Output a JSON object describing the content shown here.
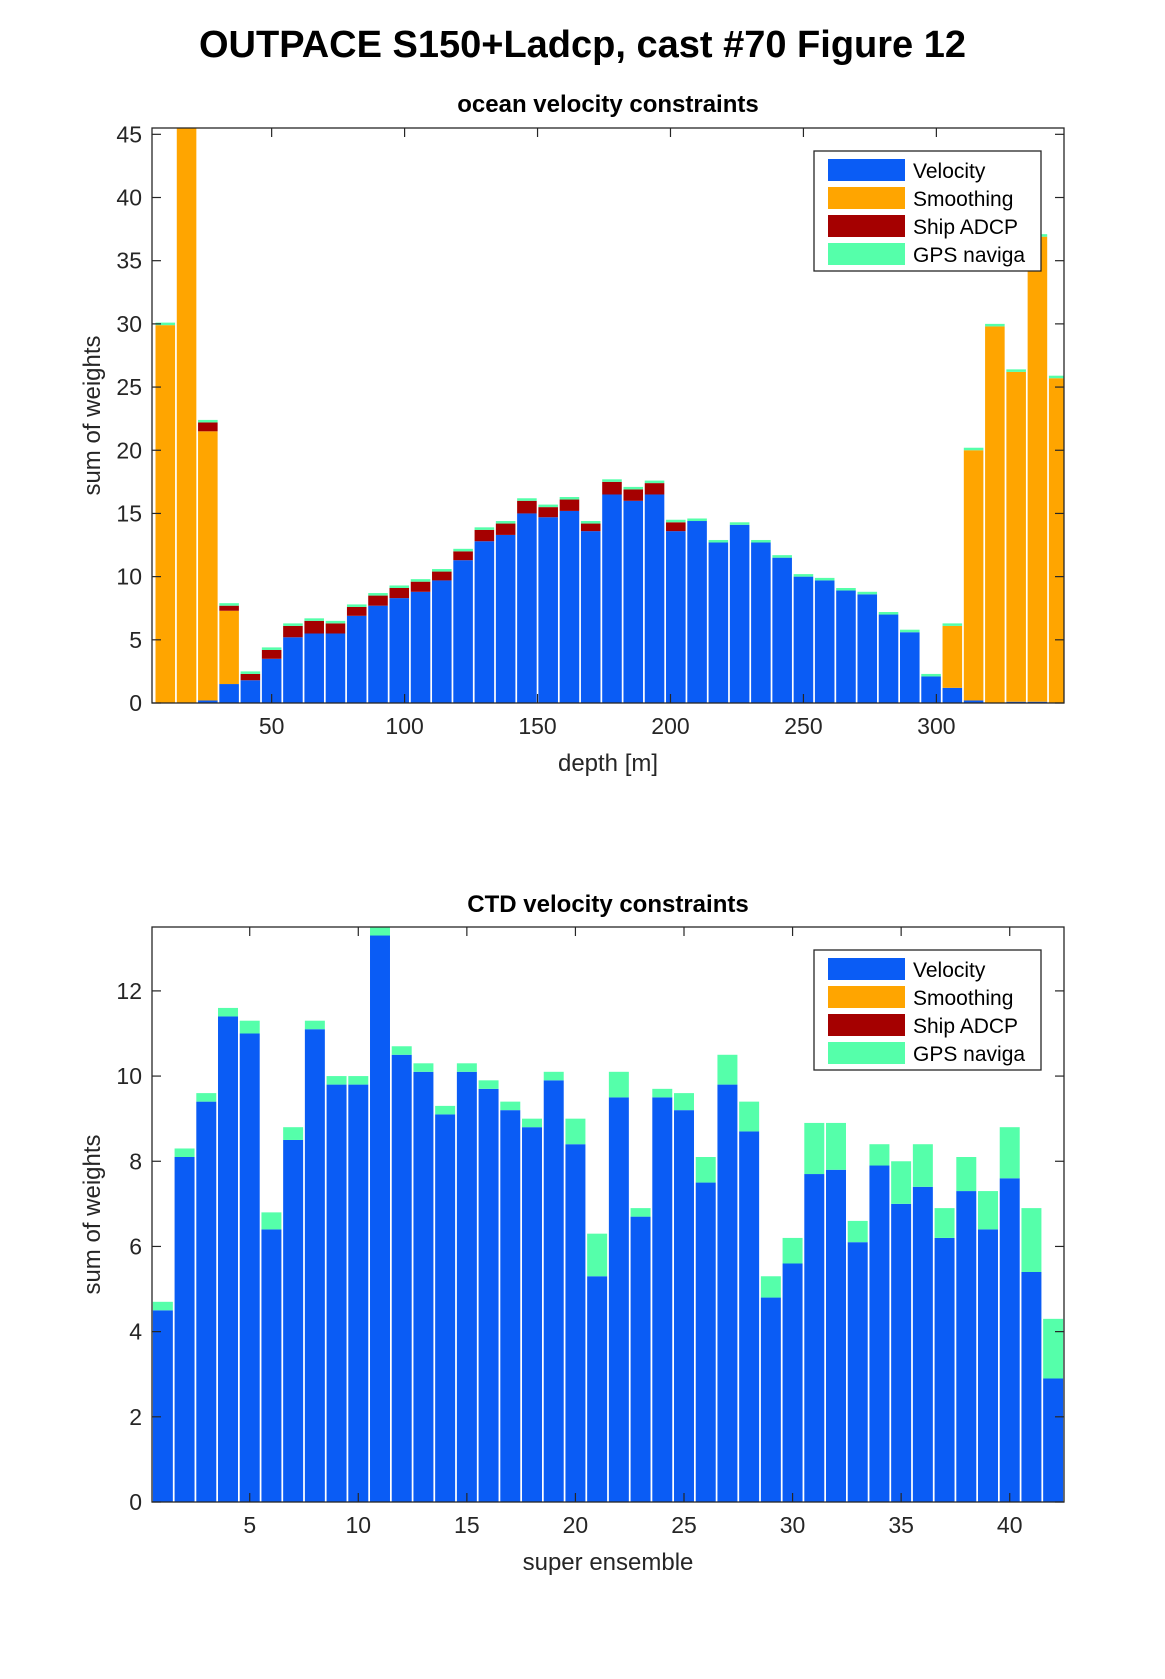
{
  "figure_title": "OUTPACE S150+Ladcp, cast #70  Figure 12",
  "colors": {
    "Velocity": "#0a5cf5",
    "Smoothing": "#ffa500",
    "Ship ADCP": "#a50000",
    "GPS naviga": "#55ffaa"
  },
  "chart_data": [
    {
      "type": "bar",
      "stacked": true,
      "title": "ocean velocity constraints",
      "xlabel": "depth [m]",
      "ylabel": "sum of weights",
      "xlim": [
        5,
        348
      ],
      "ylim": [
        0,
        45.5
      ],
      "xticks": [
        50,
        100,
        150,
        200,
        250,
        300
      ],
      "yticks": [
        0,
        5,
        10,
        15,
        20,
        25,
        30,
        35,
        40,
        45
      ],
      "legend_position": "top-right",
      "x": [
        10,
        18,
        26,
        34,
        42,
        50,
        58,
        66,
        74,
        82,
        90,
        98,
        106,
        114,
        122,
        130,
        138,
        146,
        154,
        162,
        170,
        178,
        186,
        194,
        202,
        210,
        218,
        226,
        234,
        242,
        250,
        258,
        266,
        274,
        282,
        290,
        298,
        306,
        314,
        322,
        330,
        338,
        346
      ],
      "series": [
        {
          "name": "Velocity",
          "values": [
            0,
            0,
            0.2,
            1.5,
            1.8,
            3.5,
            5.2,
            5.5,
            5.5,
            6.9,
            7.7,
            8.3,
            8.8,
            9.7,
            11.3,
            12.8,
            13.3,
            15.0,
            14.7,
            15.2,
            13.6,
            16.5,
            16.0,
            16.5,
            13.6,
            14.4,
            12.7,
            14.1,
            12.7,
            11.5,
            10.0,
            9.7,
            8.9,
            8.6,
            7.0,
            5.6,
            2.1,
            1.2,
            0.2,
            0,
            0.1,
            0.1,
            0
          ]
        },
        {
          "name": "Smoothing",
          "values": [
            29.9,
            45.5,
            21.3,
            5.8,
            0,
            0,
            0,
            0,
            0,
            0,
            0,
            0,
            0,
            0,
            0,
            0,
            0,
            0,
            0,
            0,
            0,
            0,
            0,
            0,
            0,
            0,
            0,
            0,
            0,
            0,
            0,
            0,
            0,
            0,
            0,
            0,
            0,
            4.9,
            19.8,
            29.8,
            26.1,
            36.8,
            25.7
          ]
        },
        {
          "name": "Ship ADCP",
          "values": [
            0,
            0,
            0.7,
            0.4,
            0.5,
            0.7,
            0.9,
            1.0,
            0.8,
            0.7,
            0.8,
            0.8,
            0.8,
            0.7,
            0.7,
            0.9,
            0.9,
            1.0,
            0.8,
            0.9,
            0.6,
            1.0,
            0.9,
            0.9,
            0.7,
            0,
            0,
            0,
            0,
            0,
            0,
            0,
            0,
            0,
            0,
            0,
            0,
            0,
            0,
            0,
            0,
            0,
            0
          ]
        },
        {
          "name": "GPS naviga",
          "values": [
            0.2,
            0.2,
            0.2,
            0.2,
            0.2,
            0.2,
            0.2,
            0.2,
            0.2,
            0.2,
            0.2,
            0.2,
            0.2,
            0.2,
            0.2,
            0.2,
            0.2,
            0.2,
            0.2,
            0.2,
            0.2,
            0.2,
            0.2,
            0.2,
            0.2,
            0.2,
            0.2,
            0.2,
            0.2,
            0.2,
            0.2,
            0.2,
            0.2,
            0.2,
            0.2,
            0.2,
            0.2,
            0.2,
            0.2,
            0.2,
            0.2,
            0.2,
            0.2
          ]
        }
      ]
    },
    {
      "type": "bar",
      "stacked": true,
      "title": "CTD velocity constraints",
      "xlabel": "super ensemble",
      "ylabel": "sum of weights",
      "xlim": [
        0.5,
        42.5
      ],
      "ylim": [
        0,
        13.5
      ],
      "xticks": [
        5,
        10,
        15,
        20,
        25,
        30,
        35,
        40
      ],
      "yticks": [
        0,
        2,
        4,
        6,
        8,
        10,
        12
      ],
      "legend_position": "top-right",
      "x": [
        1,
        2,
        3,
        4,
        5,
        6,
        7,
        8,
        9,
        10,
        11,
        12,
        13,
        14,
        15,
        16,
        17,
        18,
        19,
        20,
        21,
        22,
        23,
        24,
        25,
        26,
        27,
        28,
        29,
        30,
        31,
        32,
        33,
        34,
        35,
        36,
        37,
        38,
        39,
        40,
        41,
        42
      ],
      "series": [
        {
          "name": "Velocity",
          "values": [
            4.5,
            8.1,
            9.4,
            11.4,
            11.0,
            6.4,
            8.5,
            11.1,
            9.8,
            9.8,
            13.3,
            10.5,
            10.1,
            9.1,
            10.1,
            9.7,
            9.2,
            8.8,
            9.9,
            8.4,
            5.3,
            9.5,
            6.7,
            9.5,
            9.2,
            7.5,
            9.8,
            8.7,
            4.8,
            5.6,
            7.7,
            7.8,
            6.1,
            7.9,
            7.0,
            7.4,
            6.2,
            7.3,
            6.4,
            7.6,
            5.4,
            2.9
          ]
        },
        {
          "name": "Smoothing",
          "values": [
            0,
            0,
            0,
            0,
            0,
            0,
            0,
            0,
            0,
            0,
            0,
            0,
            0,
            0,
            0,
            0,
            0,
            0,
            0,
            0,
            0,
            0,
            0,
            0,
            0,
            0,
            0,
            0,
            0,
            0,
            0,
            0,
            0,
            0,
            0,
            0,
            0,
            0,
            0,
            0,
            0,
            0
          ]
        },
        {
          "name": "Ship ADCP",
          "values": [
            0,
            0,
            0,
            0,
            0,
            0,
            0,
            0,
            0,
            0,
            0,
            0,
            0,
            0,
            0,
            0,
            0,
            0,
            0,
            0,
            0,
            0,
            0,
            0,
            0,
            0,
            0,
            0,
            0,
            0,
            0,
            0,
            0,
            0,
            0,
            0,
            0,
            0,
            0,
            0,
            0,
            0
          ]
        },
        {
          "name": "GPS naviga",
          "values": [
            0.2,
            0.2,
            0.2,
            0.2,
            0.3,
            0.4,
            0.3,
            0.2,
            0.2,
            0.2,
            0.2,
            0.2,
            0.2,
            0.2,
            0.2,
            0.2,
            0.2,
            0.2,
            0.2,
            0.6,
            1.0,
            0.6,
            0.2,
            0.2,
            0.4,
            0.6,
            0.7,
            0.7,
            0.5,
            0.6,
            1.2,
            1.1,
            0.5,
            0.5,
            1.0,
            1.0,
            0.7,
            0.8,
            0.9,
            1.2,
            1.5,
            1.4
          ]
        }
      ]
    }
  ]
}
